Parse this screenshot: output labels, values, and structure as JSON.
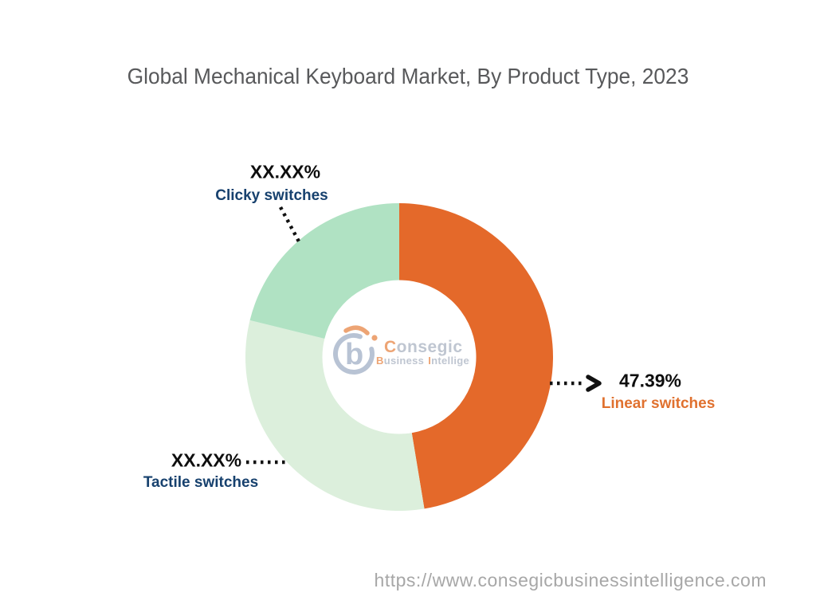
{
  "title": {
    "text": "Global Mechanical Keyboard Market, By Product Type, 2023",
    "color": "#58595B"
  },
  "chart_data": {
    "type": "pie",
    "subtype": "donut",
    "title": "Global Mechanical Keyboard Market, By Product Type, 2023",
    "unit": "%",
    "start_angle_deg": 0,
    "direction": "clockwise",
    "inner_radius_ratio": 0.5,
    "legend": "callout-labels-with-dotted-leaders",
    "value_color": "#0E0E0E",
    "segments": [
      {
        "label": "Linear switches",
        "display_value": "47.39%",
        "value_pct": 47.39,
        "masked": false,
        "color": "#E4692A",
        "label_color": "#E0712F"
      },
      {
        "label": "Tactile switches",
        "display_value": "XX.XX%",
        "value_pct": 31.45,
        "masked": true,
        "color": "#DCEFDC",
        "label_color": "#17416E"
      },
      {
        "label": "Clicky switches",
        "display_value": "XX.XX%",
        "value_pct": 21.16,
        "masked": true,
        "color": "#B0E2C3",
        "label_color": "#17416E"
      }
    ]
  },
  "watermark": {
    "mark_letter": "b",
    "brand_initial": "C",
    "brand_rest": "onsegic",
    "tagline_word1_initial": "B",
    "tagline_word1_rest": "usiness",
    "tagline_word2_initial": "I",
    "tagline_word2_rest": "ntelligence",
    "accent_color": "#EDA474",
    "muted_color": "#BFC6D1"
  },
  "footer": {
    "url": "https://www.consegicbusinessintelligence.com",
    "color": "#A7A7A7"
  }
}
